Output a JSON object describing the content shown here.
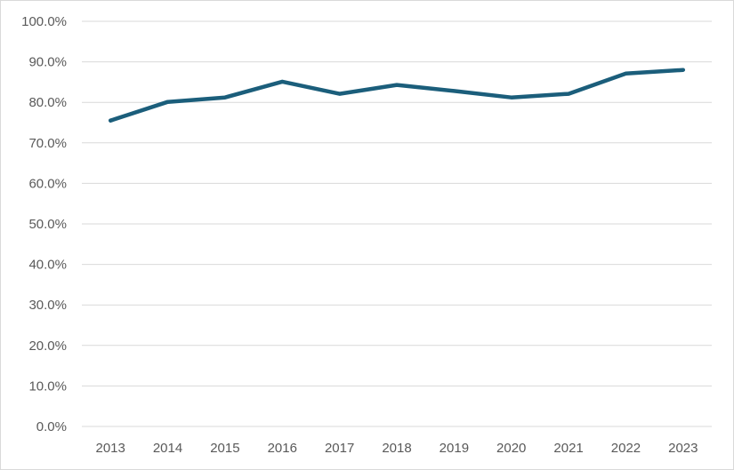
{
  "chart_data": {
    "type": "line",
    "title": "",
    "xlabel": "",
    "ylabel": "",
    "x": [
      "2013",
      "2014",
      "2015",
      "2016",
      "2017",
      "2018",
      "2019",
      "2020",
      "2021",
      "2022",
      "2023"
    ],
    "series": [
      {
        "values": [
          75.5,
          80.1,
          81.2,
          85.1,
          82.1,
          84.3,
          82.8,
          81.2,
          82.1,
          87.1,
          88.0
        ],
        "color": "#1b5e7b"
      }
    ],
    "ylim": [
      0,
      100
    ],
    "y_ticks": [
      0,
      10,
      20,
      30,
      40,
      50,
      60,
      70,
      80,
      90,
      100
    ],
    "y_tick_labels": [
      "0.0%",
      "10.0%",
      "20.0%",
      "30.0%",
      "40.0%",
      "50.0%",
      "60.0%",
      "70.0%",
      "80.0%",
      "90.0%",
      "100.0%"
    ],
    "grid": true,
    "legend": "none"
  }
}
